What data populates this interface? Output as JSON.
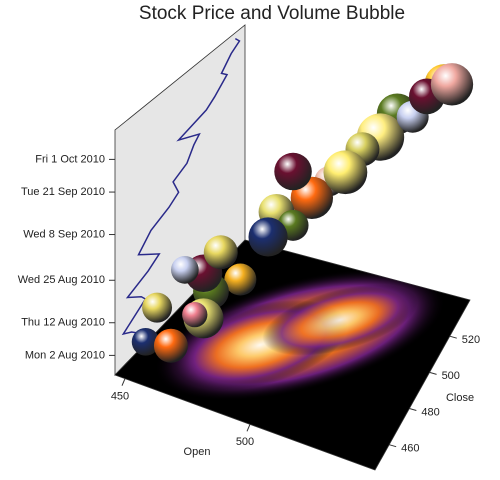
{
  "chart_data": {
    "type": "bubble3d",
    "title": "Stock Price and Volume Bubble",
    "xlabel": "Open",
    "ylabel": "Close",
    "xlim": [
      446,
      550
    ],
    "ylim": [
      446,
      540
    ],
    "zlim": [
      "2010-07-27",
      "2010-10-10"
    ],
    "xticks": [
      450,
      500
    ],
    "yticks": [
      460,
      480,
      500,
      520
    ],
    "zticks": [
      {
        "value": "2010-08-02",
        "label": "Mon 2 Aug 2010"
      },
      {
        "value": "2010-08-12",
        "label": "Thu 12 Aug 2010"
      },
      {
        "value": "2010-08-25",
        "label": "Wed 25 Aug 2010"
      },
      {
        "value": "2010-09-08",
        "label": "Wed 8 Sep 2010"
      },
      {
        "value": "2010-09-21",
        "label": "Tue 21 Sep 2010"
      },
      {
        "value": "2010-10-01",
        "label": "Fri 1 Oct 2010"
      }
    ],
    "series": [
      {
        "dates": [
          "2010-08-02",
          "2010-08-04",
          "2010-08-06",
          "2010-08-10",
          "2010-08-12",
          "2010-08-16",
          "2010-08-18",
          "2010-08-20",
          "2010-08-24",
          "2010-08-26",
          "2010-08-30",
          "2010-09-01",
          "2010-09-03",
          "2010-09-08",
          "2010-09-10",
          "2010-09-14",
          "2010-09-16",
          "2010-09-20",
          "2010-09-22",
          "2010-09-24",
          "2010-09-28",
          "2010-09-30",
          "2010-10-04",
          "2010-10-06",
          "2010-10-08"
        ],
        "open": [
          460,
          462,
          455,
          470,
          468,
          458,
          472,
          480,
          470,
          465,
          475,
          488,
          495,
          490,
          500,
          505,
          510,
          495,
          515,
          520,
          530,
          525,
          535,
          540,
          545
        ],
        "close": [
          462,
          458,
          452,
          468,
          465,
          455,
          470,
          478,
          468,
          463,
          472,
          485,
          492,
          488,
          498,
          503,
          507,
          492,
          512,
          518,
          527,
          523,
          530,
          536,
          533
        ],
        "volume": [
          15,
          18,
          12,
          25,
          10,
          14,
          20,
          16,
          22,
          12,
          18,
          24,
          15,
          20,
          28,
          14,
          30,
          22,
          18,
          35,
          16,
          26,
          20,
          24,
          28
        ],
        "colors": [
          "#e8d860",
          "#ff6a10",
          "#1c2f70",
          "#e8e070",
          "#f08090",
          "#e8d860",
          "#5a7a20",
          "#f5b020",
          "#6a1030",
          "#c8d0f0",
          "#e8d860",
          "#1c2f70",
          "#5a7a20",
          "#e8e070",
          "#ff6a10",
          "#f0c0b0",
          "#ffee70",
          "#6a1030",
          "#d8d060",
          "#ffee80",
          "#c8d0f0",
          "#5a7a20",
          "#6a1030",
          "#ffc830",
          "#f0a8a0"
        ]
      }
    ],
    "wall_line_color": "#2a2a8a"
  }
}
